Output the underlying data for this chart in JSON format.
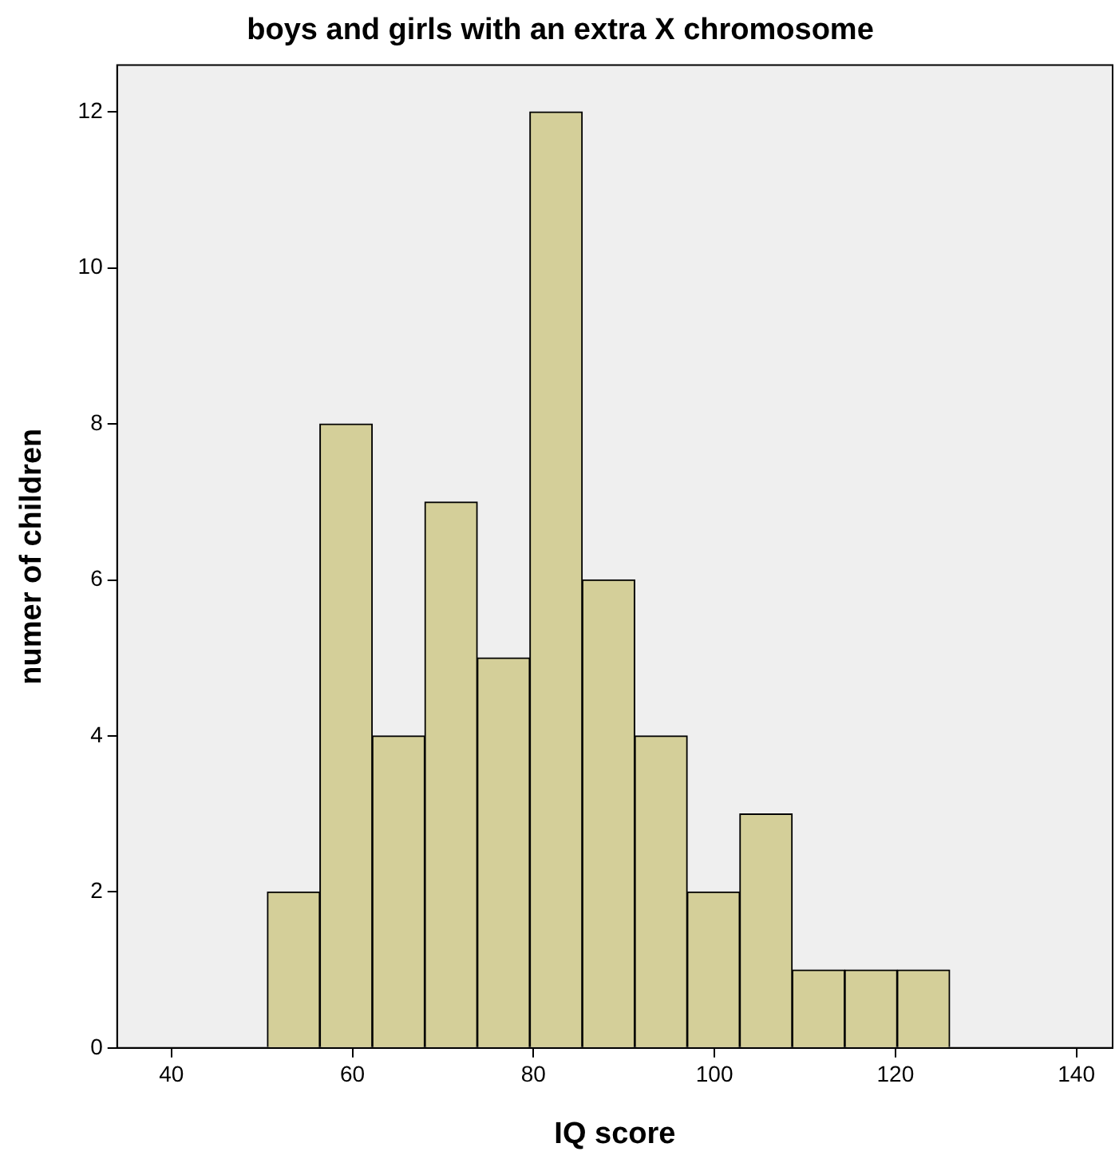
{
  "chart_data": {
    "type": "histogram",
    "title": "boys and girls with an extra X chromosome",
    "xlabel": "IQ score",
    "ylabel": "numer of children",
    "bins": [
      50.6,
      56.4,
      62.2,
      68,
      73.8,
      79.6,
      85.4,
      91.2,
      97,
      102.8,
      108.6,
      114.4,
      120.2,
      126
    ],
    "values": [
      2,
      8,
      4,
      7,
      5,
      12,
      6,
      4,
      2,
      3,
      1,
      1,
      1
    ],
    "color": "#d4cf99",
    "xlim": [
      34,
      144
    ],
    "xticks": [
      40,
      60,
      80,
      100,
      120,
      140
    ],
    "ylim": [
      0,
      12.6
    ],
    "yticks": [
      0,
      2,
      4,
      6,
      8,
      10,
      12
    ],
    "grid": false,
    "legend": false
  }
}
